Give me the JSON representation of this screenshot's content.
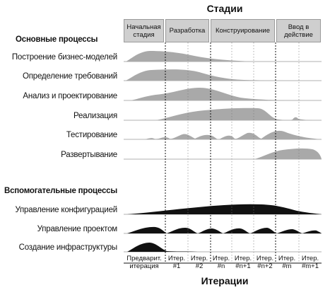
{
  "title_top": "Стадии",
  "title_bottom": "Итерации",
  "section_core": "Основные процессы",
  "section_support": "Вспомогательные процессы",
  "phases": [
    {
      "label": "Начальная\nстадия"
    },
    {
      "label": "Разработка"
    },
    {
      "label": "Конструирование"
    },
    {
      "label": "Ввод в\nдействие"
    }
  ],
  "core_processes": [
    {
      "name": "Построение бизнес-моделей"
    },
    {
      "name": "Определение требований"
    },
    {
      "name": "Анализ и проектирование"
    },
    {
      "name": "Реализация"
    },
    {
      "name": "Тестирование"
    },
    {
      "name": "Развертывание"
    }
  ],
  "support_processes": [
    {
      "name": "Управление конфигурацией"
    },
    {
      "name": "Управление проектом"
    },
    {
      "name": "Создание инфраструктуры"
    }
  ],
  "iterations": [
    {
      "label": "Предварит.\nитерация"
    },
    {
      "label": "Итер.\n#1"
    },
    {
      "label": "Итер.\n#2"
    },
    {
      "label": "Итер.\n#n"
    },
    {
      "label": "Итер.\n#n+1"
    },
    {
      "label": "Итер.\n#n+2"
    },
    {
      "label": "Итер.\n#m"
    },
    {
      "label": "Итер.\n#m+1"
    }
  ],
  "colors": {
    "core_fill": "#a9a9a9",
    "support_fill": "#111111",
    "phase_bg": "#cfcfcf"
  }
}
